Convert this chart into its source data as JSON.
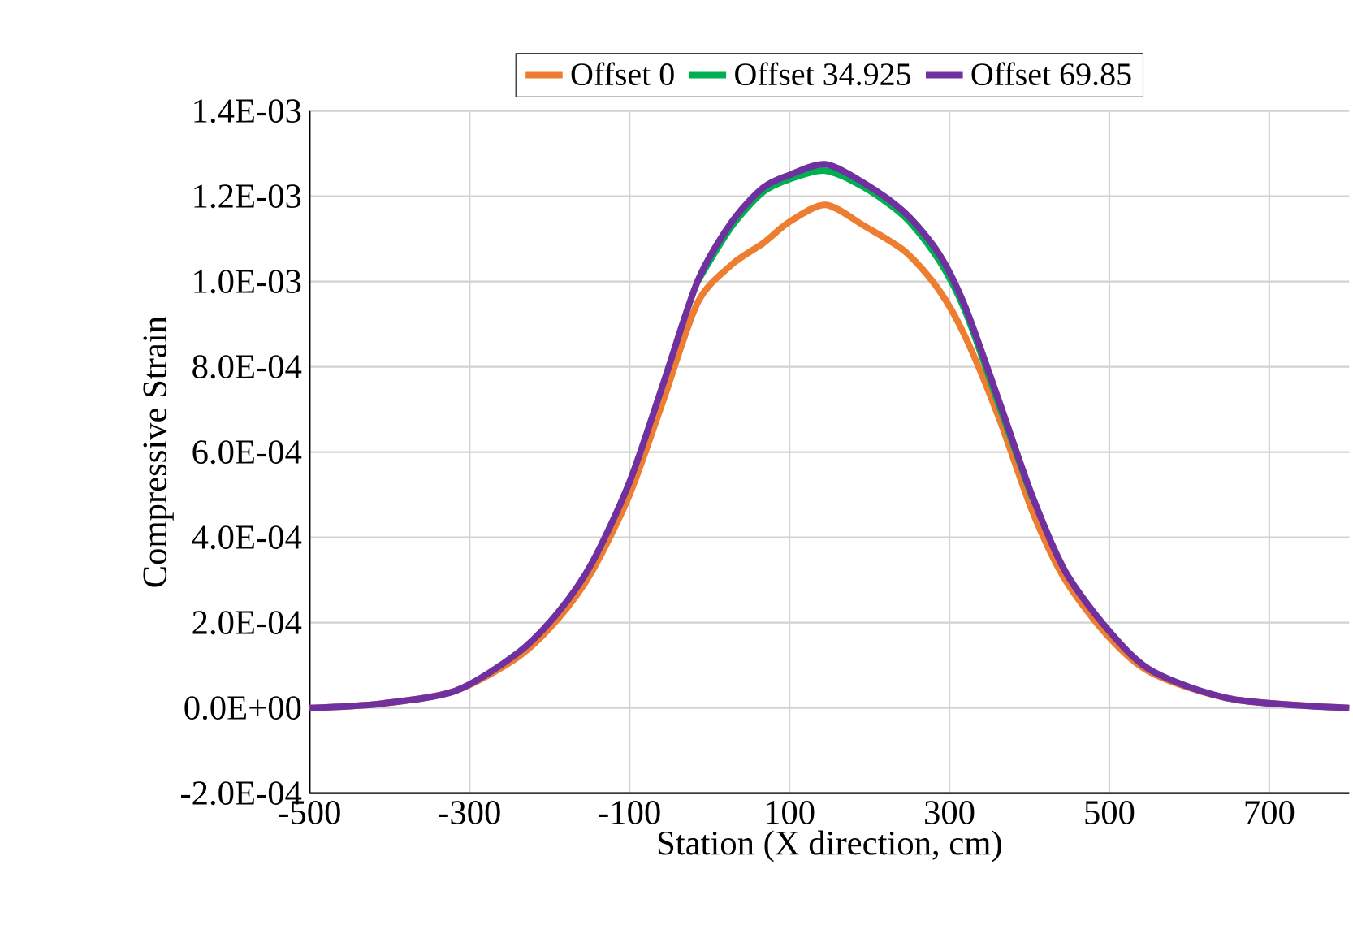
{
  "chart_data": {
    "type": "line",
    "xlabel": "Station (X direction, cm)",
    "ylabel": "Compressive Strain",
    "x": [
      -500,
      -411,
      -318,
      -239,
      -189,
      -147,
      -100,
      -58,
      -15,
      28,
      67,
      100,
      145,
      194,
      245,
      287,
      320,
      362,
      404,
      445,
      500,
      555,
      656,
      800
    ],
    "series": [
      {
        "name": "Offset 0",
        "color": "#ed7d31",
        "values": [
          0,
          1e-05,
          4e-05,
          0.00012,
          0.00021,
          0.00032,
          0.0005,
          0.00072,
          0.00095,
          0.00104,
          0.00109,
          0.00114,
          0.00118,
          0.00113,
          0.00107,
          0.00098,
          0.00087,
          0.00068,
          0.00046,
          0.0003,
          0.000165,
          8e-05,
          2e-05,
          0
        ]
      },
      {
        "name": "Offset 34.925",
        "color": "#00b050",
        "values": [
          null,
          null,
          null,
          null,
          null,
          null,
          null,
          null,
          0.001,
          0.00113,
          0.00121,
          0.00124,
          0.00126,
          0.00122,
          0.00115,
          0.00105,
          0.00093,
          0.00071,
          0.00049,
          null,
          null,
          null,
          null,
          null
        ]
      },
      {
        "name": "Offset 69.85",
        "color": "#7030a0",
        "values": [
          0,
          1e-05,
          4e-05,
          0.00013,
          0.000225,
          0.00034,
          0.00053,
          0.00076,
          0.001,
          0.00114,
          0.00122,
          0.00125,
          0.001275,
          0.00123,
          0.00116,
          0.001065,
          0.00094,
          0.00072,
          0.000495,
          0.00032,
          0.00018,
          8.5e-05,
          2e-05,
          0
        ]
      }
    ],
    "xlim": [
      -500,
      800
    ],
    "xticks": [
      -500,
      -300,
      -100,
      100,
      300,
      500,
      700
    ],
    "ylim": [
      -0.0002,
      0.0014
    ],
    "yticks": [
      {
        "value": -0.0002,
        "label": "-2.0E-04"
      },
      {
        "value": 0,
        "label": "0.0E+00"
      },
      {
        "value": 0.0002,
        "label": "2.0E-04"
      },
      {
        "value": 0.0004,
        "label": "4.0E-04"
      },
      {
        "value": 0.0006,
        "label": "6.0E-04"
      },
      {
        "value": 0.0008,
        "label": "8.0E-04"
      },
      {
        "value": 0.001,
        "label": "1.0E-03"
      },
      {
        "value": 0.0012,
        "label": "1.2E-03"
      },
      {
        "value": 0.0014,
        "label": "1.4E-03"
      }
    ],
    "grid": true,
    "legend": "top",
    "marker": "none",
    "line_style": "solid"
  }
}
